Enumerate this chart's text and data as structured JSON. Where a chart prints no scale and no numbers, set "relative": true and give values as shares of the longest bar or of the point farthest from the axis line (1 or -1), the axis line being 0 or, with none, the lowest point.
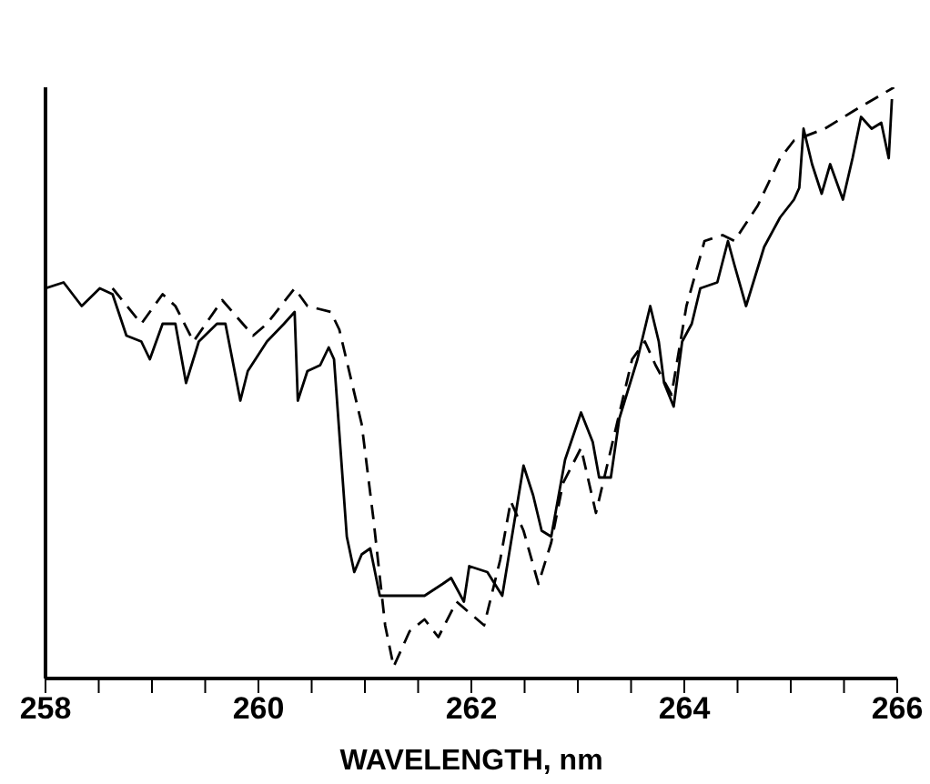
{
  "chart_data": {
    "type": "line",
    "xlabel": "WAVELENGTH, nm",
    "relative": true,
    "xlim": [
      258,
      266
    ],
    "xticks": [
      258,
      {
        "value": 258.5,
        "label": null
      },
      {
        "value": 259,
        "label": null
      },
      {
        "value": 259.5,
        "label": null
      },
      260,
      {
        "value": 260.5,
        "label": null
      },
      {
        "value": 261,
        "label": null
      },
      {
        "value": 261.5,
        "label": null
      },
      262,
      {
        "value": 262.5,
        "label": null
      },
      {
        "value": 263,
        "label": null
      },
      {
        "value": 263.5,
        "label": null
      },
      264,
      {
        "value": 264.5,
        "label": null
      },
      {
        "value": 265,
        "label": null
      },
      {
        "value": 265.5,
        "label": null
      },
      266
    ],
    "marker": "none",
    "series": [
      {
        "color": "#000000",
        "line_style": "solid",
        "x": [
          258.0,
          258.17,
          258.34,
          258.51,
          258.63,
          258.76,
          258.9,
          258.98,
          259.1,
          259.22,
          259.32,
          259.44,
          259.61,
          259.69,
          259.83,
          259.9,
          260.08,
          260.24,
          260.34,
          260.37,
          260.46,
          260.58,
          260.66,
          260.71,
          260.83,
          260.9,
          260.97,
          261.05,
          261.14,
          261.27,
          261.39,
          261.56,
          261.73,
          261.81,
          261.93,
          261.98,
          262.15,
          262.29,
          262.49,
          262.58,
          262.66,
          262.75,
          262.88,
          263.03,
          263.14,
          263.2,
          263.31,
          263.39,
          263.56,
          263.68,
          263.76,
          263.81,
          263.9,
          263.98,
          264.07,
          264.15,
          264.31,
          264.41,
          264.47,
          264.58,
          264.75,
          264.9,
          265.03,
          265.08,
          265.12,
          265.2,
          265.29,
          265.37,
          265.49,
          265.58,
          265.66,
          265.76,
          265.85,
          265.92,
          265.95
        ],
        "values": [
          0.66,
          0.67,
          0.63,
          0.66,
          0.65,
          0.58,
          0.57,
          0.54,
          0.6,
          0.6,
          0.5,
          0.57,
          0.6,
          0.6,
          0.47,
          0.52,
          0.57,
          0.6,
          0.62,
          0.47,
          0.52,
          0.53,
          0.56,
          0.54,
          0.24,
          0.18,
          0.21,
          0.22,
          0.14,
          0.14,
          0.14,
          0.14,
          0.16,
          0.17,
          0.13,
          0.19,
          0.18,
          0.14,
          0.36,
          0.31,
          0.25,
          0.24,
          0.37,
          0.45,
          0.4,
          0.34,
          0.34,
          0.44,
          0.54,
          0.63,
          0.57,
          0.5,
          0.46,
          0.57,
          0.6,
          0.66,
          0.67,
          0.74,
          0.7,
          0.63,
          0.73,
          0.78,
          0.81,
          0.83,
          0.93,
          0.87,
          0.82,
          0.87,
          0.81,
          0.88,
          0.95,
          0.93,
          0.94,
          0.88,
          0.98
        ]
      },
      {
        "color": "#000000",
        "line_style": "dashed",
        "x": [
          258.63,
          258.9,
          259.1,
          259.22,
          259.39,
          259.66,
          259.95,
          260.08,
          260.34,
          260.46,
          260.68,
          260.76,
          260.97,
          261.08,
          261.19,
          261.27,
          261.42,
          261.56,
          261.69,
          261.86,
          262.12,
          262.27,
          262.37,
          262.49,
          262.63,
          262.75,
          262.86,
          263.03,
          263.17,
          263.34,
          263.51,
          263.63,
          263.73,
          263.88,
          264.02,
          264.19,
          264.36,
          264.47,
          264.69,
          264.9,
          265.03,
          265.32,
          265.59,
          265.97
        ],
        "values": [
          0.66,
          0.6,
          0.65,
          0.63,
          0.57,
          0.64,
          0.58,
          0.6,
          0.66,
          0.63,
          0.62,
          0.59,
          0.43,
          0.27,
          0.09,
          0.02,
          0.08,
          0.1,
          0.07,
          0.13,
          0.09,
          0.2,
          0.3,
          0.25,
          0.16,
          0.23,
          0.33,
          0.39,
          0.28,
          0.41,
          0.54,
          0.57,
          0.53,
          0.48,
          0.63,
          0.74,
          0.75,
          0.74,
          0.8,
          0.88,
          0.91,
          0.93,
          0.96,
          1.0
        ]
      }
    ]
  }
}
